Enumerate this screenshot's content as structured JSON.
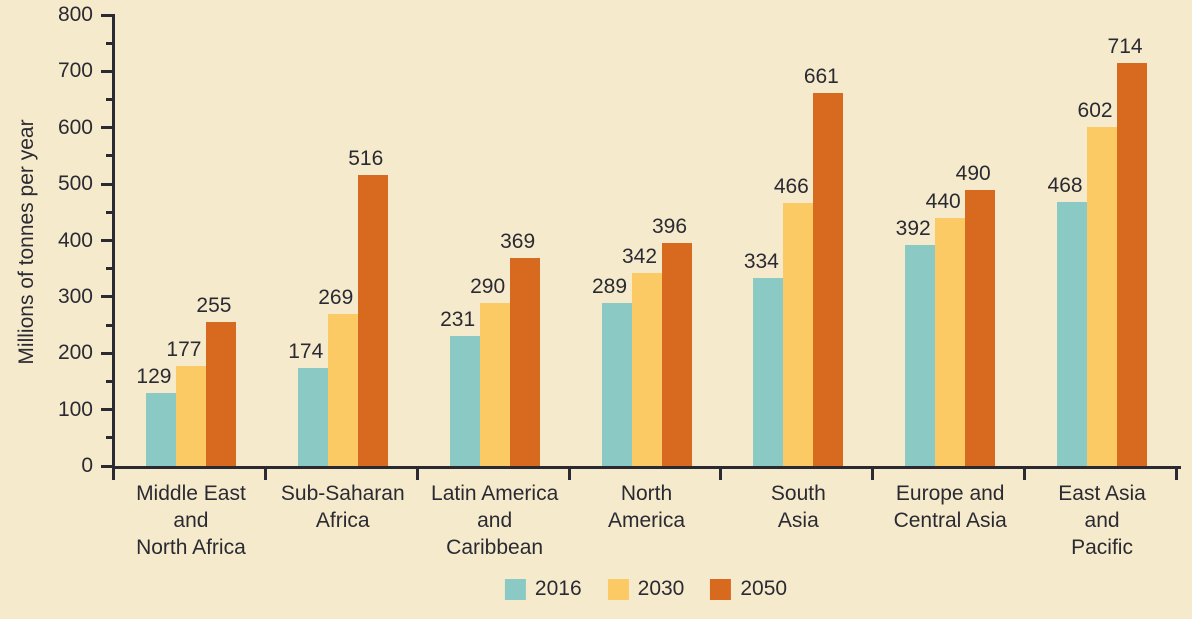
{
  "chart_data": {
    "type": "bar",
    "title": "",
    "ylabel": "Millions of tonnes per year",
    "xlabel": "",
    "ylim": [
      0,
      800
    ],
    "y_major_tick": 100,
    "y_minor_tick": 50,
    "y_tick_labels": [
      "0",
      "100",
      "200",
      "300",
      "400",
      "500",
      "600",
      "700",
      "800"
    ],
    "grid": false,
    "legend_position": "bottom-center",
    "categories": [
      "Middle East and North Africa",
      "Sub-Saharan Africa",
      "Latin America and Caribbean",
      "North America",
      "South Asia",
      "Europe and Central Asia",
      "East Asia and Pacific"
    ],
    "category_label_lines": [
      [
        "Middle East",
        "and",
        "North Africa"
      ],
      [
        "Sub-Saharan",
        "Africa"
      ],
      [
        "Latin America",
        "and",
        "Caribbean"
      ],
      [
        "North",
        "America"
      ],
      [
        "South",
        "Asia"
      ],
      [
        "Europe and",
        "Central Asia"
      ],
      [
        "East Asia",
        "and",
        "Pacific"
      ]
    ],
    "series": [
      {
        "name": "2016",
        "color": "#8BCAC4",
        "values": [
          129,
          174,
          231,
          289,
          334,
          392,
          468
        ]
      },
      {
        "name": "2030",
        "color": "#FCCA65",
        "values": [
          177,
          269,
          290,
          342,
          466,
          440,
          602
        ]
      },
      {
        "name": "2050",
        "color": "#D86A1F",
        "values": [
          255,
          516,
          369,
          396,
          661,
          490,
          714
        ]
      }
    ]
  },
  "colors": {
    "background": "#F5EBCC",
    "text": "#2B2A33",
    "axis": "#2B2A33"
  }
}
